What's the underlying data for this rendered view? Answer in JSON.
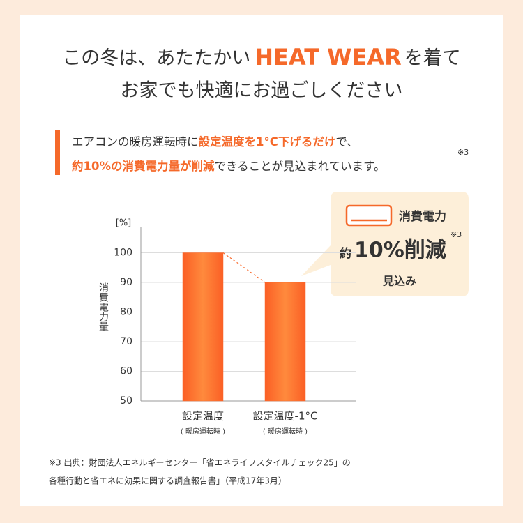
{
  "headline": {
    "line1": [
      "この冬は、あたたかい",
      "HEAT WEAR",
      "を着て"
    ],
    "line2": "お家でも快適にお過ごしください"
  },
  "lead": {
    "line1": [
      "エアコンの暖房運転時に",
      "設定温度を1°C下げるだけ",
      "で、"
    ],
    "line2": [
      "約10%の消費電力量が削減",
      "できることが見込まれています。"
    ],
    "note": "※3"
  },
  "callout": {
    "title": "消費電力",
    "note": "※3",
    "prefix": "約",
    "amount": "10%削減",
    "suffix": "見込み"
  },
  "footnote": [
    "※3 出典：財団法人エネルギーセンター「省エネライフスタイルチェック25」の",
    "各種行動と省エネに効果に関する調査報告書」（平成17年3月）"
  ],
  "chart_data": {
    "type": "bar",
    "y_unit": "[%]",
    "y_label": "消費電力量",
    "categories": [
      "設定温度",
      "設定温度-1°C"
    ],
    "category_notes": [
      "( 暖房運転時 )",
      "( 暖房運転時 )"
    ],
    "values": [
      100,
      90
    ],
    "color": "#f96b2e",
    "ylim": [
      50,
      110
    ],
    "yticks": [
      50,
      60,
      70,
      80,
      90,
      100
    ],
    "grid": true
  }
}
